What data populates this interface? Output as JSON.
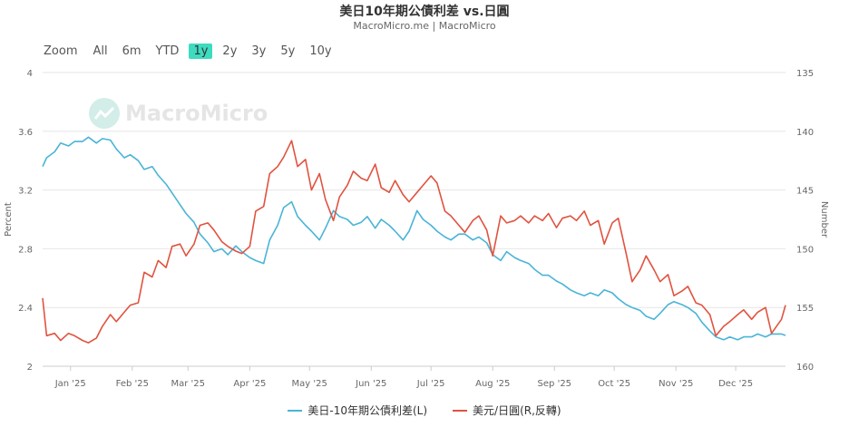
{
  "header": {
    "title": "美日10年期公債利差 vs.日圓",
    "subtitle": "MacroMicro.me | MacroMicro"
  },
  "range_selector": {
    "zoom_label": "Zoom",
    "buttons": [
      "All",
      "6m",
      "YTD",
      "1y",
      "2y",
      "3y",
      "5y",
      "10y"
    ],
    "active": "1y"
  },
  "watermark": {
    "text": "MacroMicro"
  },
  "colors": {
    "spread": "#4ab4d7",
    "fx": "#e0533f",
    "active_button": "#3ddbc0"
  },
  "chart_data": {
    "type": "line",
    "x_tick_labels": [
      "Jan '25",
      "Feb '25",
      "Mar '25",
      "Apr '25",
      "May '25",
      "Jun '25",
      "Jul '25",
      "Aug '25",
      "Sep '25",
      "Oct '25",
      "Nov '25",
      "Dec '25"
    ],
    "x_start": "2024-12-18",
    "x_end": "2025-12-26",
    "y_left": {
      "label": "Percent",
      "min": 2,
      "max": 4,
      "ticks": [
        "2",
        "2.4",
        "2.8",
        "3.2",
        "3.6",
        "4"
      ]
    },
    "y_right": {
      "label": "Number",
      "min": 135,
      "max": 160,
      "reversed": true,
      "ticks": [
        "135",
        "140",
        "145",
        "150",
        "155",
        "160"
      ]
    },
    "legend_position": "bottom",
    "series": [
      {
        "name": "美日-10年期公債利差(L)",
        "axis": "left",
        "points": [
          [
            "2024-12-18",
            3.36
          ],
          [
            "2024-12-20",
            3.42
          ],
          [
            "2024-12-24",
            3.46
          ],
          [
            "2024-12-27",
            3.52
          ],
          [
            "2024-12-31",
            3.5
          ],
          [
            "2025-01-03",
            3.53
          ],
          [
            "2025-01-07",
            3.53
          ],
          [
            "2025-01-10",
            3.56
          ],
          [
            "2025-01-14",
            3.52
          ],
          [
            "2025-01-17",
            3.55
          ],
          [
            "2025-01-21",
            3.54
          ],
          [
            "2025-01-24",
            3.48
          ],
          [
            "2025-01-28",
            3.42
          ],
          [
            "2025-01-31",
            3.44
          ],
          [
            "2025-02-04",
            3.4
          ],
          [
            "2025-02-07",
            3.34
          ],
          [
            "2025-02-11",
            3.36
          ],
          [
            "2025-02-14",
            3.3
          ],
          [
            "2025-02-18",
            3.24
          ],
          [
            "2025-02-21",
            3.18
          ],
          [
            "2025-02-25",
            3.1
          ],
          [
            "2025-02-28",
            3.04
          ],
          [
            "2025-03-04",
            2.98
          ],
          [
            "2025-03-07",
            2.9
          ],
          [
            "2025-03-11",
            2.84
          ],
          [
            "2025-03-14",
            2.78
          ],
          [
            "2025-03-18",
            2.8
          ],
          [
            "2025-03-21",
            2.76
          ],
          [
            "2025-03-25",
            2.82
          ],
          [
            "2025-03-28",
            2.78
          ],
          [
            "2025-04-01",
            2.74
          ],
          [
            "2025-04-04",
            2.72
          ],
          [
            "2025-04-08",
            2.7
          ],
          [
            "2025-04-11",
            2.86
          ],
          [
            "2025-04-15",
            2.96
          ],
          [
            "2025-04-18",
            3.08
          ],
          [
            "2025-04-22",
            3.12
          ],
          [
            "2025-04-25",
            3.02
          ],
          [
            "2025-04-29",
            2.96
          ],
          [
            "2025-05-02",
            2.92
          ],
          [
            "2025-05-06",
            2.86
          ],
          [
            "2025-05-09",
            2.94
          ],
          [
            "2025-05-13",
            3.06
          ],
          [
            "2025-05-16",
            3.02
          ],
          [
            "2025-05-20",
            3.0
          ],
          [
            "2025-05-23",
            2.96
          ],
          [
            "2025-05-27",
            2.98
          ],
          [
            "2025-05-30",
            3.02
          ],
          [
            "2025-06-03",
            2.94
          ],
          [
            "2025-06-06",
            3.0
          ],
          [
            "2025-06-10",
            2.96
          ],
          [
            "2025-06-13",
            2.92
          ],
          [
            "2025-06-17",
            2.86
          ],
          [
            "2025-06-20",
            2.92
          ],
          [
            "2025-06-24",
            3.06
          ],
          [
            "2025-06-27",
            3.0
          ],
          [
            "2025-07-01",
            2.96
          ],
          [
            "2025-07-04",
            2.92
          ],
          [
            "2025-07-08",
            2.88
          ],
          [
            "2025-07-11",
            2.86
          ],
          [
            "2025-07-15",
            2.9
          ],
          [
            "2025-07-18",
            2.9
          ],
          [
            "2025-07-22",
            2.86
          ],
          [
            "2025-07-25",
            2.88
          ],
          [
            "2025-07-29",
            2.84
          ],
          [
            "2025-08-01",
            2.76
          ],
          [
            "2025-08-05",
            2.72
          ],
          [
            "2025-08-08",
            2.78
          ],
          [
            "2025-08-12",
            2.74
          ],
          [
            "2025-08-15",
            2.72
          ],
          [
            "2025-08-19",
            2.7
          ],
          [
            "2025-08-22",
            2.66
          ],
          [
            "2025-08-26",
            2.62
          ],
          [
            "2025-08-29",
            2.62
          ],
          [
            "2025-09-02",
            2.58
          ],
          [
            "2025-09-05",
            2.56
          ],
          [
            "2025-09-09",
            2.52
          ],
          [
            "2025-09-12",
            2.5
          ],
          [
            "2025-09-16",
            2.48
          ],
          [
            "2025-09-19",
            2.5
          ],
          [
            "2025-09-23",
            2.48
          ],
          [
            "2025-09-26",
            2.52
          ],
          [
            "2025-09-30",
            2.5
          ],
          [
            "2025-10-03",
            2.46
          ],
          [
            "2025-10-07",
            2.42
          ],
          [
            "2025-10-10",
            2.4
          ],
          [
            "2025-10-14",
            2.38
          ],
          [
            "2025-10-17",
            2.34
          ],
          [
            "2025-10-21",
            2.32
          ],
          [
            "2025-10-24",
            2.36
          ],
          [
            "2025-10-28",
            2.42
          ],
          [
            "2025-10-31",
            2.44
          ],
          [
            "2025-11-04",
            2.42
          ],
          [
            "2025-11-07",
            2.4
          ],
          [
            "2025-11-11",
            2.36
          ],
          [
            "2025-11-14",
            2.3
          ],
          [
            "2025-11-18",
            2.24
          ],
          [
            "2025-11-21",
            2.2
          ],
          [
            "2025-11-25",
            2.18
          ],
          [
            "2025-11-28",
            2.2
          ],
          [
            "2025-12-02",
            2.18
          ],
          [
            "2025-12-05",
            2.2
          ],
          [
            "2025-12-09",
            2.2
          ],
          [
            "2025-12-12",
            2.22
          ],
          [
            "2025-12-16",
            2.2
          ],
          [
            "2025-12-19",
            2.22
          ],
          [
            "2025-12-24",
            2.22
          ],
          [
            "2025-12-26",
            2.21
          ]
        ]
      },
      {
        "name": "美元/日圓(R,反轉)",
        "axis": "right",
        "points": [
          [
            "2024-12-18",
            154.2
          ],
          [
            "2024-12-20",
            157.4
          ],
          [
            "2024-12-24",
            157.2
          ],
          [
            "2024-12-27",
            157.8
          ],
          [
            "2024-12-31",
            157.2
          ],
          [
            "2025-01-03",
            157.4
          ],
          [
            "2025-01-07",
            157.8
          ],
          [
            "2025-01-10",
            158.0
          ],
          [
            "2025-01-14",
            157.6
          ],
          [
            "2025-01-17",
            156.6
          ],
          [
            "2025-01-21",
            155.6
          ],
          [
            "2025-01-24",
            156.2
          ],
          [
            "2025-01-28",
            155.4
          ],
          [
            "2025-01-31",
            154.8
          ],
          [
            "2025-02-04",
            154.6
          ],
          [
            "2025-02-07",
            152.0
          ],
          [
            "2025-02-11",
            152.4
          ],
          [
            "2025-02-14",
            151.0
          ],
          [
            "2025-02-18",
            151.6
          ],
          [
            "2025-02-21",
            149.8
          ],
          [
            "2025-02-25",
            149.6
          ],
          [
            "2025-02-28",
            150.6
          ],
          [
            "2025-03-04",
            149.6
          ],
          [
            "2025-03-07",
            148.0
          ],
          [
            "2025-03-11",
            147.8
          ],
          [
            "2025-03-14",
            148.4
          ],
          [
            "2025-03-18",
            149.4
          ],
          [
            "2025-03-21",
            149.8
          ],
          [
            "2025-03-25",
            150.2
          ],
          [
            "2025-03-28",
            150.4
          ],
          [
            "2025-04-01",
            149.8
          ],
          [
            "2025-04-04",
            146.8
          ],
          [
            "2025-04-08",
            146.4
          ],
          [
            "2025-04-11",
            143.6
          ],
          [
            "2025-04-15",
            143.0
          ],
          [
            "2025-04-18",
            142.2
          ],
          [
            "2025-04-22",
            140.8
          ],
          [
            "2025-04-25",
            143.0
          ],
          [
            "2025-04-29",
            142.4
          ],
          [
            "2025-05-02",
            145.0
          ],
          [
            "2025-05-06",
            143.6
          ],
          [
            "2025-05-09",
            145.8
          ],
          [
            "2025-05-13",
            147.6
          ],
          [
            "2025-05-16",
            145.6
          ],
          [
            "2025-05-20",
            144.6
          ],
          [
            "2025-05-23",
            143.4
          ],
          [
            "2025-05-27",
            144.0
          ],
          [
            "2025-05-30",
            144.2
          ],
          [
            "2025-06-03",
            142.8
          ],
          [
            "2025-06-06",
            144.8
          ],
          [
            "2025-06-10",
            145.2
          ],
          [
            "2025-06-13",
            144.2
          ],
          [
            "2025-06-17",
            145.4
          ],
          [
            "2025-06-20",
            146.0
          ],
          [
            "2025-06-24",
            145.2
          ],
          [
            "2025-06-27",
            144.6
          ],
          [
            "2025-07-01",
            143.8
          ],
          [
            "2025-07-04",
            144.4
          ],
          [
            "2025-07-08",
            146.8
          ],
          [
            "2025-07-11",
            147.2
          ],
          [
            "2025-07-15",
            148.0
          ],
          [
            "2025-07-18",
            148.6
          ],
          [
            "2025-07-22",
            147.6
          ],
          [
            "2025-07-25",
            147.2
          ],
          [
            "2025-07-29",
            148.4
          ],
          [
            "2025-08-01",
            150.6
          ],
          [
            "2025-08-05",
            147.2
          ],
          [
            "2025-08-08",
            147.8
          ],
          [
            "2025-08-12",
            147.6
          ],
          [
            "2025-08-15",
            147.2
          ],
          [
            "2025-08-19",
            147.8
          ],
          [
            "2025-08-22",
            147.2
          ],
          [
            "2025-08-26",
            147.6
          ],
          [
            "2025-08-29",
            147.0
          ],
          [
            "2025-09-02",
            148.2
          ],
          [
            "2025-09-05",
            147.4
          ],
          [
            "2025-09-09",
            147.2
          ],
          [
            "2025-09-12",
            147.6
          ],
          [
            "2025-09-16",
            146.8
          ],
          [
            "2025-09-19",
            148.0
          ],
          [
            "2025-09-23",
            147.6
          ],
          [
            "2025-09-26",
            149.6
          ],
          [
            "2025-09-30",
            147.8
          ],
          [
            "2025-10-03",
            147.4
          ],
          [
            "2025-10-07",
            150.4
          ],
          [
            "2025-10-10",
            152.8
          ],
          [
            "2025-10-14",
            151.8
          ],
          [
            "2025-10-17",
            150.6
          ],
          [
            "2025-10-21",
            151.8
          ],
          [
            "2025-10-24",
            152.8
          ],
          [
            "2025-10-28",
            152.2
          ],
          [
            "2025-10-31",
            154.0
          ],
          [
            "2025-11-04",
            153.6
          ],
          [
            "2025-11-07",
            153.2
          ],
          [
            "2025-11-11",
            154.6
          ],
          [
            "2025-11-14",
            154.8
          ],
          [
            "2025-11-18",
            155.6
          ],
          [
            "2025-11-21",
            157.4
          ],
          [
            "2025-11-25",
            156.6
          ],
          [
            "2025-11-28",
            156.2
          ],
          [
            "2025-12-02",
            155.6
          ],
          [
            "2025-12-05",
            155.2
          ],
          [
            "2025-12-09",
            156.0
          ],
          [
            "2025-12-12",
            155.4
          ],
          [
            "2025-12-16",
            155.0
          ],
          [
            "2025-12-19",
            157.2
          ],
          [
            "2025-12-24",
            156.0
          ],
          [
            "2025-12-26",
            154.8
          ]
        ]
      }
    ]
  }
}
